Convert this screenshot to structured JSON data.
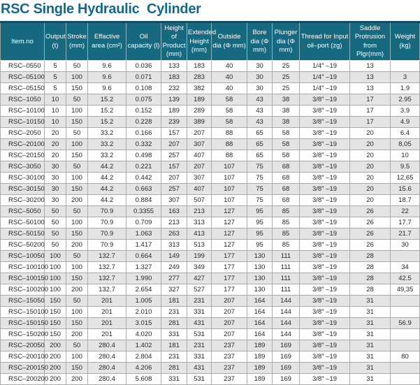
{
  "page_title": "RSC Single Hydraulic  Cylinder",
  "colors": {
    "title_text": "#15678e",
    "header_bg": "#17697f",
    "header_top_border": "#114e63",
    "header_text": "#ffffff",
    "row_alt_bg": "#e4e4e4",
    "grid_border": "#ababab",
    "body_text": "#262626"
  },
  "table": {
    "columns": [
      {
        "key": "item_no",
        "label": "Item.no"
      },
      {
        "key": "output",
        "label": "Output (t)"
      },
      {
        "key": "stroke",
        "label": "Stroke (mm)"
      },
      {
        "key": "effactive_area",
        "label": "Effactive area (cm²)"
      },
      {
        "key": "oil_capacity",
        "label": "Oil capacity (l)"
      },
      {
        "key": "height_of_product",
        "label": "Height of Product (mm)"
      },
      {
        "key": "extended_height",
        "label": "Extended Height (mm)"
      },
      {
        "key": "outside_dia",
        "label": "Outside dia (Φ mm)"
      },
      {
        "key": "bore_dia",
        "label": "Bore dia (Φ mm)"
      },
      {
        "key": "plunger_dia",
        "label": "Plunger dia (Φ mm)"
      },
      {
        "key": "thread_for_input_oil_port",
        "label": "Thread for Input oil–port (zg)"
      },
      {
        "key": "saddle_protrusion",
        "label": "Saddle Protrusion from Plgr(mm)"
      },
      {
        "key": "weight",
        "label": "Weight (kg)"
      }
    ],
    "rows": [
      [
        "RSC–0550",
        "5",
        "50",
        "9.6",
        "0.036",
        "133",
        "183",
        "40",
        "30",
        "25",
        "1/4″ –19",
        "13",
        ""
      ],
      [
        "RSC–05100",
        "5",
        "100",
        "9.6",
        "0.071",
        "183",
        "283",
        "40",
        "30",
        "25",
        "1/4″ –19",
        "13",
        "3"
      ],
      [
        "RSC–05150",
        "5",
        "150",
        "9.6",
        "0.108",
        "232",
        "382",
        "40",
        "30",
        "25",
        "1/4″ –19",
        "13",
        "1.9"
      ],
      [
        "RSC–1050",
        "10",
        "50",
        "15.2",
        "0.075",
        "139",
        "189",
        "58",
        "43",
        "38",
        "3/8″ –19",
        "17",
        "2.95"
      ],
      [
        "RSC–10100",
        "10",
        "100",
        "15.2",
        "0.152",
        "189",
        "289",
        "58",
        "43",
        "38",
        "3/8″ –19",
        "17",
        "3.9"
      ],
      [
        "RSC–10150",
        "10",
        "150",
        "15.2",
        "0.228",
        "239",
        "389",
        "58",
        "43",
        "38",
        "3/8″ –19",
        "17",
        "4.9"
      ],
      [
        "RSC–2050",
        "20",
        "50",
        "33.2",
        "0.166",
        "157",
        "207",
        "88",
        "65",
        "58",
        "3/8″ –19",
        "20",
        "6.4"
      ],
      [
        "RSC–20100",
        "20",
        "100",
        "33.2",
        "0.332",
        "207",
        "307",
        "88",
        "65",
        "58",
        "3/8″ –19",
        "20",
        "8,05"
      ],
      [
        "RSC–20150",
        "20",
        "150",
        "33.2",
        "0.498",
        "257",
        "407",
        "88",
        "65",
        "58",
        "3/8″ –19",
        "20",
        "10"
      ],
      [
        "RSC–3050",
        "30",
        "50",
        "44.2",
        "0.221",
        "157",
        "207",
        "107",
        "75",
        "68",
        "3/8″ –19",
        "20",
        "9.5"
      ],
      [
        "RSC–30100",
        "30",
        "100",
        "44.2",
        "0.442",
        "207",
        "307",
        "107",
        "75",
        "68",
        "3/8″ –19",
        "20",
        "12,65"
      ],
      [
        "RSC–30150",
        "30",
        "150",
        "44.2",
        "0.663",
        "257",
        "407",
        "107",
        "75",
        "68",
        "3/8″ –19",
        "20",
        "15.6"
      ],
      [
        "RSC–30200",
        "30",
        "200",
        "44.2",
        "0.884",
        "307",
        "507",
        "107",
        "75",
        "68",
        "3/8″ –19",
        "20",
        "18.7"
      ],
      [
        "RSC–5050",
        "50",
        "50",
        "70.9",
        "0.3355",
        "163",
        "213",
        "127",
        "95",
        "85",
        "3/8″ –19",
        "26",
        "22"
      ],
      [
        "RSC–50100",
        "50",
        "100",
        "70.9",
        "0.709",
        "213",
        "313",
        "127",
        "95",
        "85",
        "3/8″ –19",
        "26",
        "17.7"
      ],
      [
        "RSC–50150",
        "50",
        "150",
        "70.9",
        "1.063",
        "263",
        "413",
        "127",
        "95",
        "85",
        "3/8″ –19",
        "26",
        "21.7"
      ],
      [
        "RSC–50200",
        "50",
        "200",
        "70.9",
        "1.417",
        "313",
        "513",
        "127",
        "95",
        "85",
        "3/8″ –19",
        "26",
        "30"
      ],
      [
        "RSC–10050",
        "100",
        "50",
        "132.7",
        "0.664",
        "149",
        "199",
        "177",
        "130",
        "111",
        "3/8″ –19",
        "28",
        ""
      ],
      [
        "RSC–100100",
        "100",
        "100",
        "132.7",
        "1.327",
        "249",
        "349",
        "177",
        "130",
        "111",
        "3/8″ –19",
        "28",
        "34"
      ],
      [
        "RSC–100150",
        "100",
        "150",
        "132.7",
        "1.990",
        "277",
        "427",
        "177",
        "130",
        "111",
        "3/8″ –19",
        "28",
        "42.5"
      ],
      [
        "RSC–100200",
        "100",
        "200",
        "132.7",
        "2.654",
        "327",
        "527",
        "177",
        "130",
        "111",
        "3/8″ –19",
        "28",
        "49,35"
      ],
      [
        "RSC–15050",
        "150",
        "50",
        "201",
        "1.005",
        "181",
        "231",
        "207",
        "164",
        "144",
        "3/8″ –19",
        "31",
        ""
      ],
      [
        "RSC–150100",
        "150",
        "100",
        "201",
        "2.010",
        "231",
        "331",
        "207",
        "164",
        "144",
        "3/8″ –19",
        "31",
        ""
      ],
      [
        "RSC–150150",
        "150",
        "150",
        "201",
        "3.015",
        "281",
        "431",
        "207",
        "164",
        "144",
        "3/8″ –19",
        "31",
        "56.9"
      ],
      [
        "RSC–150200",
        "150",
        "200",
        "201",
        "4.020",
        "331",
        "531",
        "207",
        "164",
        "144",
        "3/8″ –19",
        "31",
        ""
      ],
      [
        "RSC–20050",
        "200",
        "50",
        "280.4",
        "1.402",
        "181",
        "231",
        "237",
        "189",
        "169",
        "3/8″ –19",
        "31",
        ""
      ],
      [
        "RSC–200100",
        "200",
        "100",
        "280.4",
        "2.804",
        "231",
        "331",
        "237",
        "189",
        "169",
        "3/8″ –19",
        "31",
        "80"
      ],
      [
        "RSC–200150",
        "200",
        "150",
        "280.4",
        "4.206",
        "281",
        "431",
        "237",
        "189",
        "169",
        "3/8″ –19",
        "31",
        ""
      ],
      [
        "RSC–200200",
        "200",
        "200",
        "280.4",
        "5.608",
        "331",
        "531",
        "237",
        "189",
        "169",
        "3/8″ –19",
        "31",
        ""
      ]
    ]
  }
}
